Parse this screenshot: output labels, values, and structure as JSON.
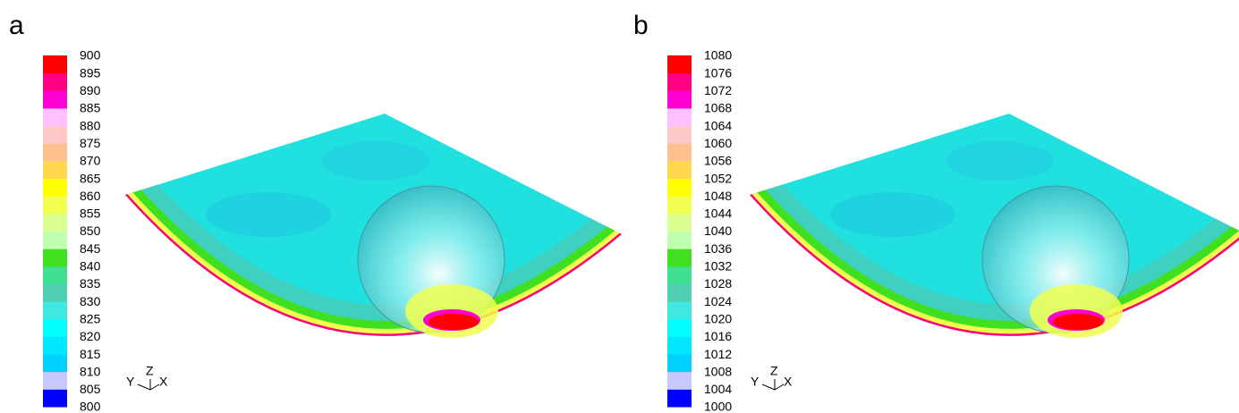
{
  "panels": [
    {
      "label": "a",
      "colorbar": {
        "ticks": [
          800,
          805,
          810,
          815,
          820,
          825,
          830,
          835,
          840,
          845,
          850,
          855,
          860,
          865,
          870,
          875,
          880,
          885,
          890,
          895,
          900
        ]
      },
      "triad": {
        "y": "Y",
        "z": "Z",
        "x": "X"
      }
    },
    {
      "label": "b",
      "colorbar": {
        "ticks": [
          1000,
          1004,
          1008,
          1012,
          1016,
          1020,
          1024,
          1028,
          1032,
          1036,
          1040,
          1044,
          1048,
          1052,
          1056,
          1060,
          1064,
          1068,
          1072,
          1076,
          1080
        ]
      },
      "triad": {
        "y": "Y",
        "z": "Z",
        "x": "X"
      }
    }
  ],
  "colormap": [
    "#0000ff",
    "#c8c8ff",
    "#00d0ff",
    "#00e8ff",
    "#00ffff",
    "#40e8e0",
    "#50d0b0",
    "#40e090",
    "#40e020",
    "#c0ffb0",
    "#d8ff90",
    "#f0ff50",
    "#ffff00",
    "#ffd850",
    "#ffc090",
    "#ffc8c8",
    "#ffc0ff",
    "#ff00d0",
    "#ff0080",
    "#ff0000"
  ]
}
